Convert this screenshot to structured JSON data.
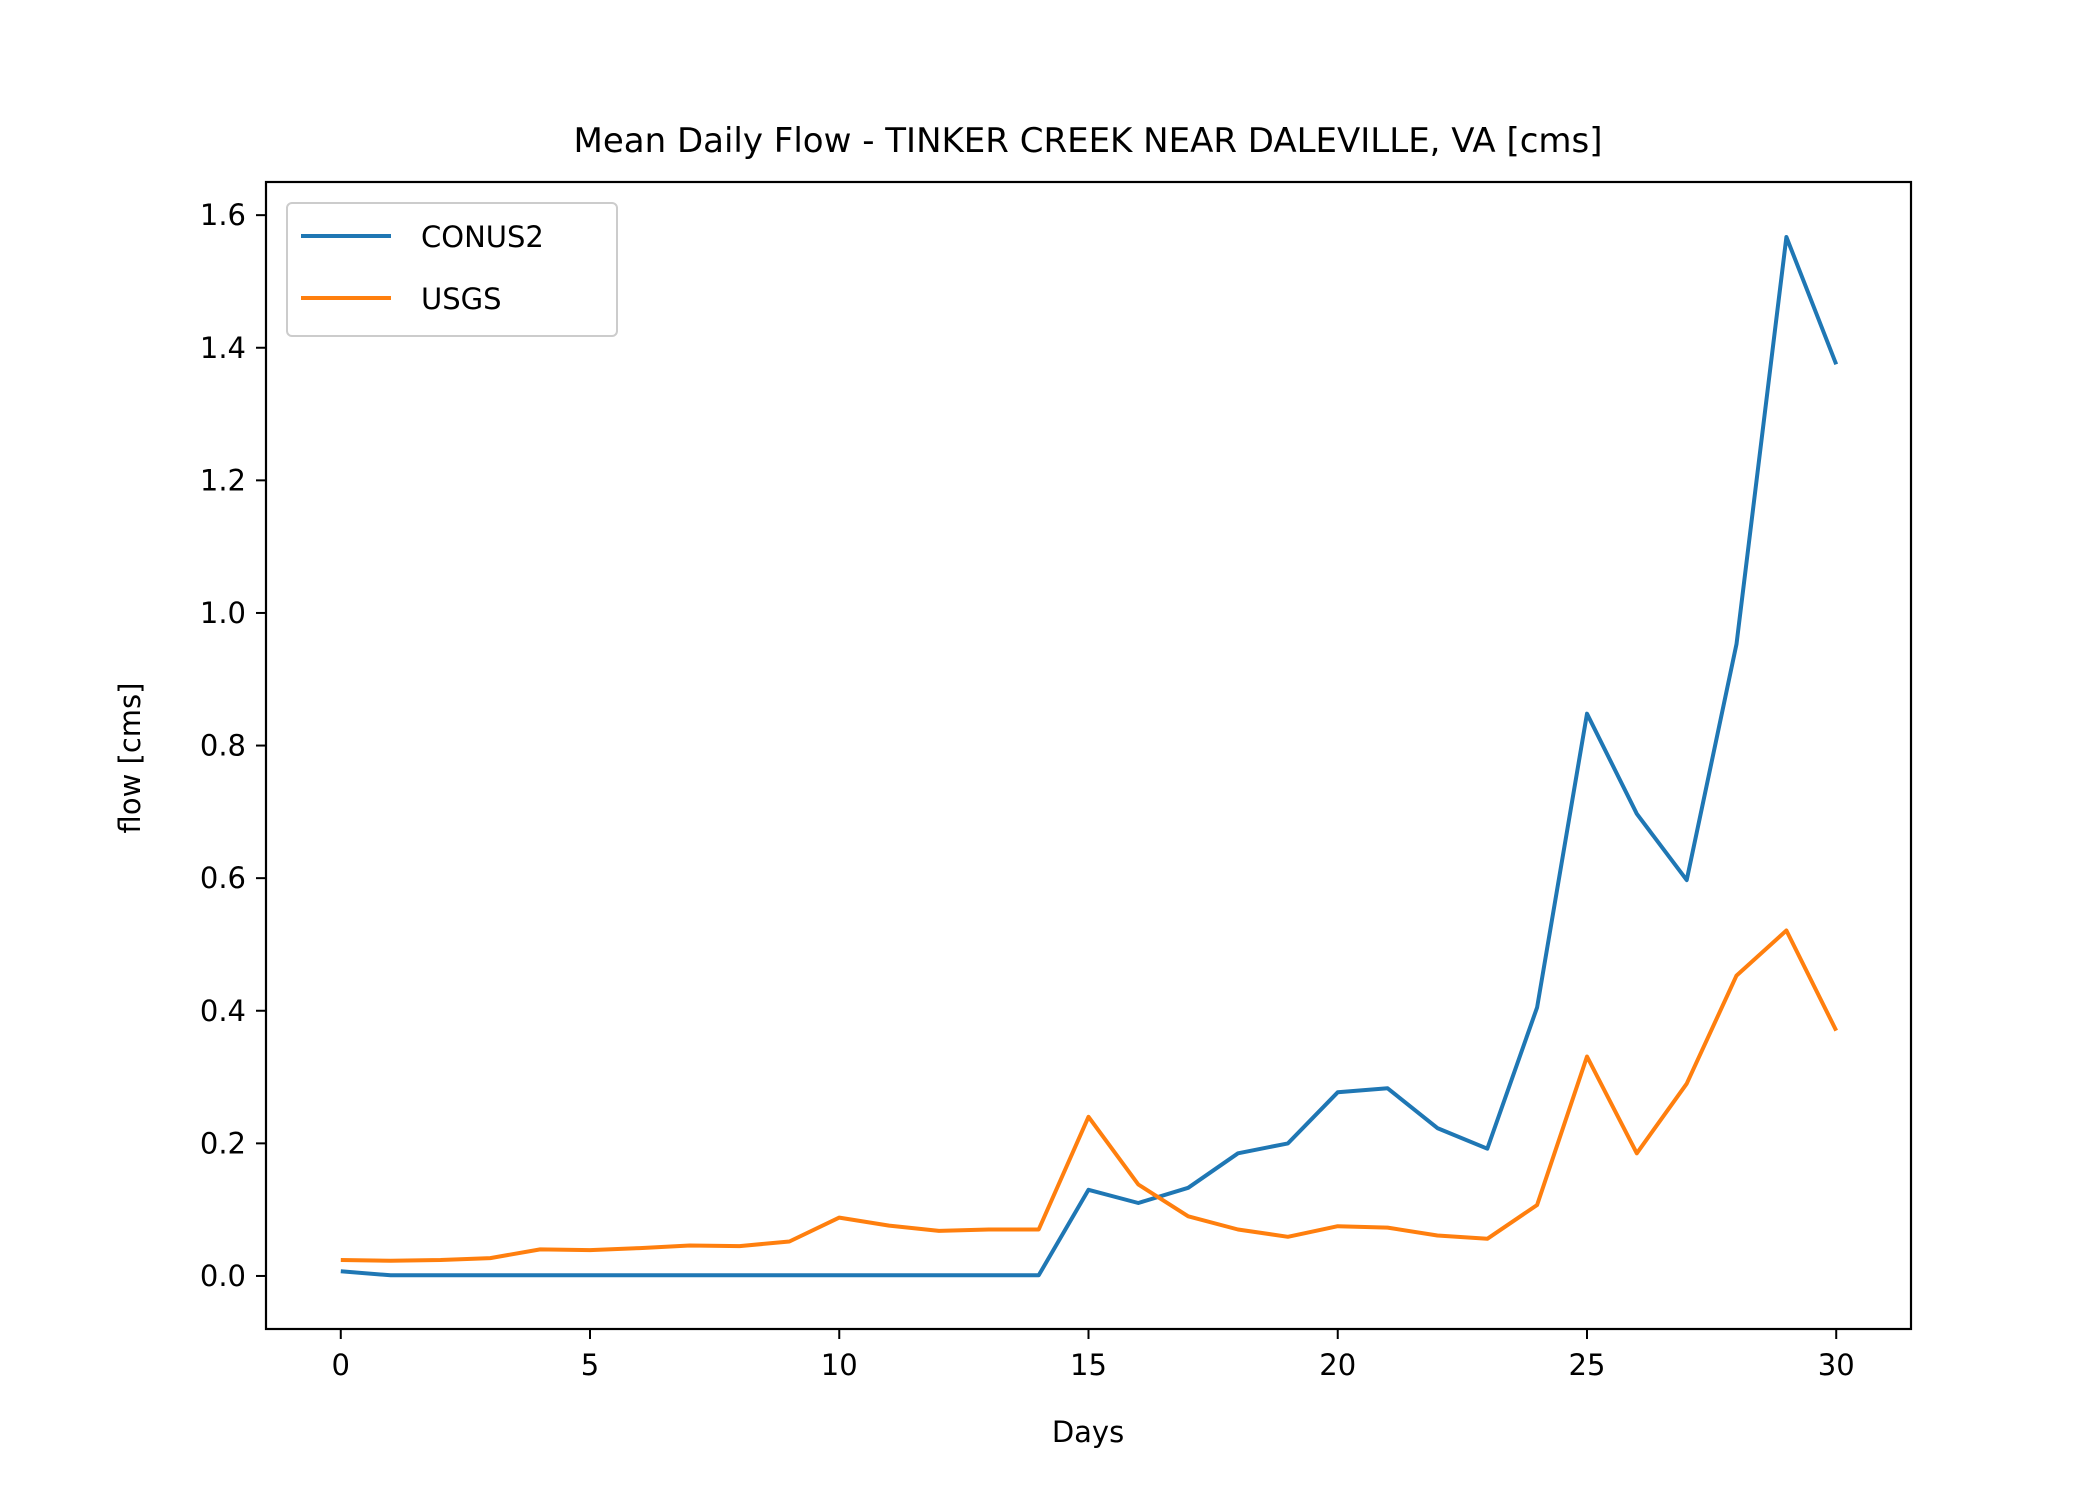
{
  "chart_data": {
    "type": "line",
    "title": "Mean Daily Flow - TINKER CREEK NEAR DALEVILLE, VA [cms]",
    "xlabel": "Days",
    "ylabel": "flow [cms]",
    "xlim": [
      -1.5,
      31.5
    ],
    "ylim": [
      -0.08,
      1.65
    ],
    "x_ticks": [
      0,
      5,
      10,
      15,
      20,
      25,
      30
    ],
    "x_tick_labels": [
      "0",
      "5",
      "10",
      "15",
      "20",
      "25",
      "30"
    ],
    "y_ticks": [
      0.0,
      0.2,
      0.4,
      0.6,
      0.8,
      1.0,
      1.2,
      1.4,
      1.6
    ],
    "y_tick_labels": [
      "0.0",
      "0.2",
      "0.4",
      "0.6",
      "0.8",
      "1.0",
      "1.2",
      "1.4",
      "1.6"
    ],
    "grid": false,
    "legend_position": "top-left",
    "x": [
      0,
      1,
      2,
      3,
      4,
      5,
      6,
      7,
      8,
      9,
      10,
      11,
      12,
      13,
      14,
      15,
      16,
      17,
      18,
      19,
      20,
      21,
      22,
      23,
      24,
      25,
      26,
      27,
      28,
      29,
      30
    ],
    "series": [
      {
        "name": "CONUS2",
        "color": "#1f77b4",
        "values": [
          0.007,
          0.001,
          0.001,
          0.001,
          0.001,
          0.001,
          0.001,
          0.001,
          0.001,
          0.001,
          0.001,
          0.001,
          0.001,
          0.001,
          0.001,
          0.13,
          0.11,
          0.133,
          0.185,
          0.2,
          0.277,
          0.283,
          0.223,
          0.192,
          0.405,
          0.848,
          0.697,
          0.597,
          0.953,
          1.567,
          1.375
        ]
      },
      {
        "name": "USGS",
        "color": "#ff7f0e",
        "values": [
          0.024,
          0.023,
          0.024,
          0.027,
          0.04,
          0.039,
          0.042,
          0.046,
          0.045,
          0.052,
          0.088,
          0.076,
          0.068,
          0.07,
          0.07,
          0.24,
          0.138,
          0.09,
          0.07,
          0.059,
          0.075,
          0.073,
          0.061,
          0.056,
          0.107,
          0.331,
          0.185,
          0.29,
          0.453,
          0.521,
          0.37
        ]
      }
    ]
  }
}
